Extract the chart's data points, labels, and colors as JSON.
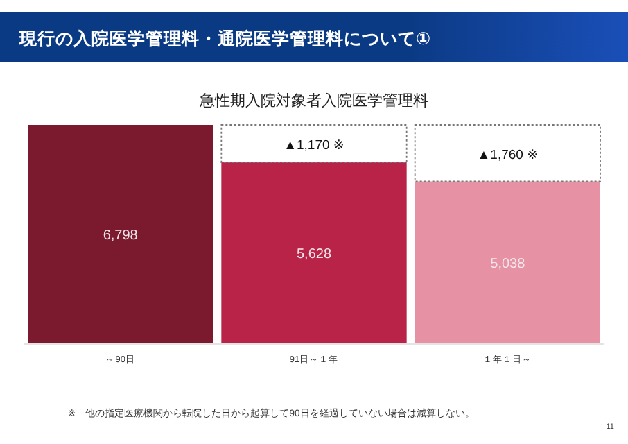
{
  "chart_data": {
    "type": "bar",
    "title": "現行の入院医学管理料・通院医学管理料について①",
    "subtitle": "急性期入院対象者入院医学管理料",
    "categories": [
      "～90日",
      "91日～１年",
      "１年１日～"
    ],
    "stacked": true,
    "series": [
      {
        "colors": [
          "#7b1a2e",
          "#b82347",
          "#e791a5"
        ],
        "values": [
          6798,
          5628,
          5038
        ],
        "value_labels": [
          "6,798",
          "5,628",
          "5,038"
        ]
      },
      {
        "color": "#ffffff",
        "line_style": "dotted",
        "values": [
          null,
          1170,
          1760
        ],
        "value_labels": [
          null,
          "▲1,170 ※",
          "▲1,760 ※"
        ]
      }
    ],
    "annotations": [
      "※　他の指定医療機関から転院した日から起算して90日を経過していない場合は減算しない。",
      "11"
    ]
  }
}
